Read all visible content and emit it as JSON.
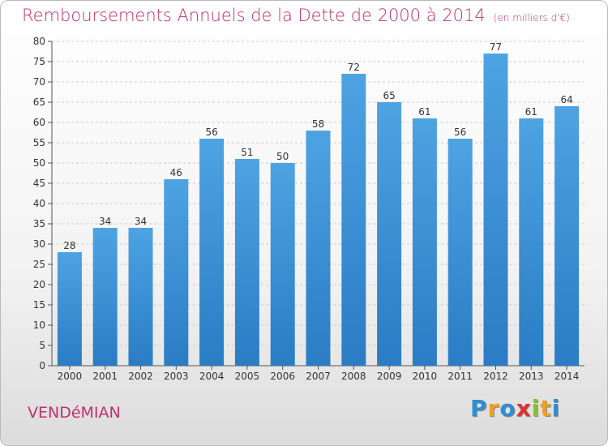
{
  "title": "Remboursements Annuels de la Dette de 2000 à 2014",
  "title_unit": "(en milliers d'€)",
  "commune": "VENDéMIAN",
  "logo": {
    "letters": [
      "P",
      "r",
      "o",
      "x",
      "i",
      "t",
      "i"
    ],
    "colors": [
      "#2e8fd0",
      "#f0a020",
      "#2e8fd0",
      "#e03030",
      "#88c030",
      "#f0a020",
      "#2e8fd0"
    ]
  },
  "colors": {
    "bar": "#4ea3e3",
    "bar_dark": "#2a7cc4",
    "title": "#c0306e",
    "grid": "#cccccc"
  },
  "chart_data": {
    "type": "bar",
    "title": "Remboursements Annuels de la Dette de 2000 à 2014",
    "xlabel": "",
    "ylabel": "en milliers d'€",
    "categories": [
      "2000",
      "2001",
      "2002",
      "2003",
      "2004",
      "2005",
      "2006",
      "2007",
      "2008",
      "2009",
      "2010",
      "2011",
      "2012",
      "2013",
      "2014"
    ],
    "values": [
      28,
      34,
      34,
      46,
      56,
      51,
      50,
      58,
      72,
      65,
      61,
      56,
      77,
      61,
      64
    ],
    "ylim": [
      0,
      80
    ],
    "ytick_step": 5,
    "grid": true
  }
}
